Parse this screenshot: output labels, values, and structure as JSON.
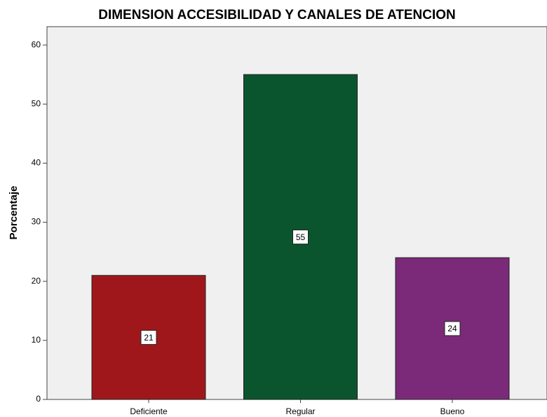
{
  "chart_data": {
    "type": "bar",
    "title": "DIMENSION ACCESIBILIDAD Y CANALES DE ATENCION",
    "y_label": "Porcentaje",
    "categories": [
      "Deficiente",
      "Regular",
      "Bueno"
    ],
    "values": [
      21,
      55,
      24
    ],
    "colors": [
      "#a0171b",
      "#0a552d",
      "#7b2a7a"
    ],
    "ylim": [
      0,
      63.1
    ],
    "yticks": [
      0,
      10,
      20,
      30,
      40,
      50,
      60
    ],
    "grid": false
  }
}
